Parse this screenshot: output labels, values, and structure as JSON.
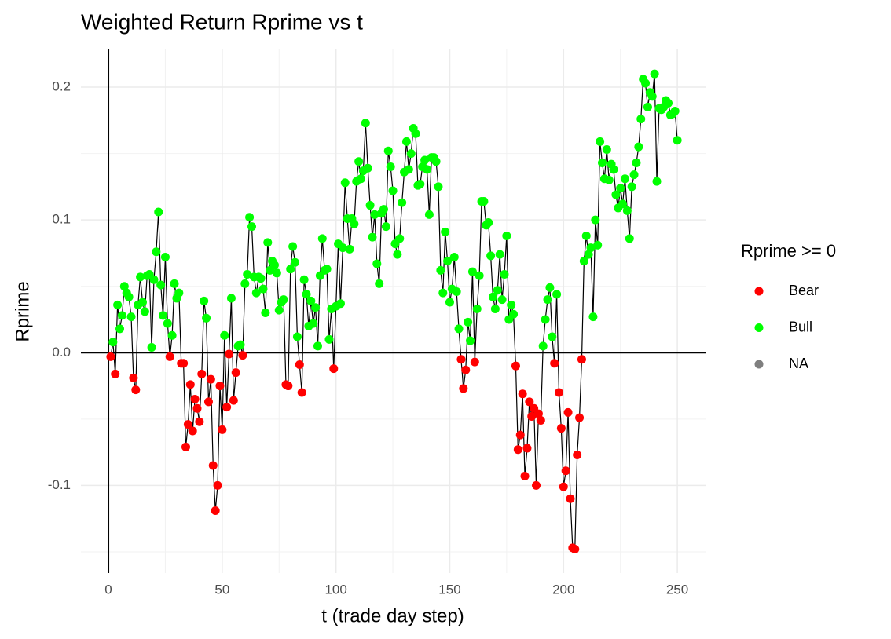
{
  "chart_data": {
    "type": "line",
    "title": "Weighted Return Rprime vs t",
    "x_label": "t (trade day step)",
    "y_label": "Rprime",
    "legend_title": "Rprime >= 0",
    "threshold": 0,
    "groups": [
      {
        "name": "Bear",
        "color": "#ff0000"
      },
      {
        "name": "Bull",
        "color": "#00ff00"
      },
      {
        "name": "NA",
        "color": "#7f7f7f"
      }
    ],
    "line_color": "#000000",
    "hline": 0,
    "vline": 0,
    "xlim": [
      -12.1,
      262.4
    ],
    "ylim": [
      -0.166,
      0.229
    ],
    "xticks": [
      0,
      50,
      100,
      150,
      200,
      250
    ],
    "yticks": [
      -0.1,
      {
        "value": 0,
        "label": "0.0"
      },
      0.1,
      0.2
    ],
    "x_minor_grid": [
      25,
      75,
      125,
      175,
      225
    ],
    "y_minor_grid": [
      -0.15,
      -0.05,
      0.05,
      0.15
    ],
    "grid": true,
    "x": [
      1,
      2,
      3,
      4,
      5,
      6,
      7,
      8,
      9,
      10,
      11,
      12,
      13,
      14,
      15,
      16,
      17,
      18,
      19,
      20,
      21,
      22,
      23,
      24,
      25,
      26,
      27,
      28,
      29,
      30,
      31,
      32,
      33,
      34,
      35,
      36,
      37,
      38,
      39,
      40,
      41,
      42,
      43,
      44,
      45,
      46,
      47,
      48,
      49,
      50,
      51,
      52,
      53,
      54,
      55,
      56,
      57,
      58,
      59,
      60,
      61,
      62,
      63,
      64,
      65,
      66,
      67,
      68,
      69,
      70,
      71,
      72,
      73,
      74,
      75,
      76,
      77,
      78,
      79,
      80,
      81,
      82,
      83,
      84,
      85,
      86,
      87,
      88,
      89,
      90,
      91,
      92,
      93,
      94,
      95,
      96,
      97,
      98,
      99,
      100,
      101,
      102,
      103,
      104,
      105,
      106,
      107,
      108,
      109,
      110,
      111,
      112,
      113,
      114,
      115,
      116,
      117,
      118,
      119,
      120,
      121,
      122,
      123,
      124,
      125,
      126,
      127,
      128,
      129,
      130,
      131,
      132,
      133,
      134,
      135,
      136,
      137,
      138,
      139,
      140,
      141,
      142,
      143,
      144,
      145,
      146,
      147,
      148,
      149,
      150,
      151,
      152,
      153,
      154,
      155,
      156,
      157,
      158,
      159,
      160,
      161,
      162,
      163,
      164,
      165,
      166,
      167,
      168,
      169,
      170,
      171,
      172,
      173,
      174,
      175,
      176,
      177,
      178,
      179,
      180,
      181,
      182,
      183,
      184,
      185,
      186,
      187,
      188,
      189,
      190,
      191,
      192,
      193,
      194,
      195,
      196,
      197,
      198,
      199,
      200,
      201,
      202,
      203,
      204,
      205,
      206,
      207,
      208,
      209,
      210,
      211,
      212,
      213,
      214,
      215,
      216,
      217,
      218,
      219,
      220,
      221,
      222,
      223,
      224,
      225,
      226,
      227,
      228,
      229,
      230,
      231,
      232,
      233,
      234,
      235,
      236,
      237,
      238,
      239,
      240,
      241,
      242,
      243,
      244,
      245,
      246,
      247,
      248,
      249,
      250
    ],
    "values": [
      -0.003,
      0.008,
      -0.016,
      0.036,
      0.018,
      0.028,
      0.05,
      0.045,
      0.042,
      0.027,
      -0.019,
      -0.028,
      0.036,
      0.057,
      0.038,
      0.031,
      0.058,
      0.059,
      0.004,
      0.055,
      0.076,
      0.106,
      0.051,
      0.028,
      0.072,
      0.022,
      -0.003,
      0.013,
      0.052,
      0.041,
      0.045,
      -0.008,
      -0.008,
      -0.071,
      -0.054,
      -0.024,
      -0.059,
      -0.035,
      -0.042,
      -0.052,
      -0.016,
      0.039,
      0.026,
      -0.037,
      -0.02,
      -0.085,
      -0.119,
      -0.1,
      -0.025,
      -0.058,
      0.013,
      -0.041,
      -0.001,
      0.041,
      -0.036,
      -0.015,
      0.005,
      0.006,
      -0.002,
      0.052,
      0.059,
      0.102,
      0.095,
      0.057,
      0.045,
      0.057,
      0.056,
      0.048,
      0.03,
      0.083,
      0.062,
      0.069,
      0.066,
      0.06,
      0.032,
      0.038,
      0.04,
      -0.024,
      -0.025,
      0.063,
      0.08,
      0.068,
      0.012,
      -0.009,
      -0.03,
      0.055,
      0.044,
      0.02,
      0.039,
      0.022,
      0.034,
      0.005,
      0.058,
      0.086,
      0.062,
      0.063,
      0.01,
      0.033,
      -0.012,
      0.035,
      0.082,
      0.037,
      0.079,
      0.128,
      0.101,
      0.078,
      0.101,
      0.097,
      0.129,
      0.144,
      0.131,
      0.137,
      0.173,
      0.139,
      0.111,
      0.087,
      0.104,
      0.067,
      0.052,
      0.105,
      0.108,
      0.095,
      0.152,
      0.14,
      0.122,
      0.082,
      0.074,
      0.086,
      0.113,
      0.136,
      0.159,
      0.138,
      0.15,
      0.169,
      0.165,
      0.126,
      0.127,
      0.14,
      0.145,
      0.138,
      0.104,
      0.147,
      0.147,
      0.144,
      0.125,
      0.062,
      0.045,
      0.091,
      0.069,
      0.038,
      0.048,
      0.072,
      0.046,
      0.018,
      -0.005,
      -0.027,
      -0.013,
      0.023,
      0.009,
      0.061,
      -0.007,
      0.033,
      0.058,
      0.114,
      0.114,
      0.096,
      0.098,
      0.073,
      0.042,
      0.033,
      0.047,
      0.074,
      0.04,
      0.059,
      0.088,
      0.025,
      0.036,
      0.029,
      -0.01,
      -0.073,
      -0.062,
      -0.031,
      -0.093,
      -0.072,
      -0.037,
      -0.048,
      -0.042,
      -0.1,
      -0.046,
      -0.051,
      0.005,
      0.025,
      0.04,
      0.049,
      0.012,
      -0.008,
      0.044,
      -0.03,
      -0.057,
      -0.101,
      -0.089,
      -0.045,
      -0.11,
      -0.147,
      -0.148,
      -0.077,
      -0.049,
      -0.005,
      0.069,
      0.088,
      0.074,
      0.079,
      0.027,
      0.1,
      0.081,
      0.159,
      0.143,
      0.131,
      0.153,
      0.13,
      0.142,
      0.138,
      0.119,
      0.109,
      0.124,
      0.112,
      0.131,
      0.107,
      0.086,
      0.125,
      0.134,
      0.143,
      0.155,
      0.176,
      0.206,
      0.203,
      0.185,
      0.196,
      0.193,
      0.21,
      0.129,
      0.184,
      0.183,
      0.185,
      0.19,
      0.188,
      0.179,
      0.18,
      0.182,
      0.16
    ]
  }
}
